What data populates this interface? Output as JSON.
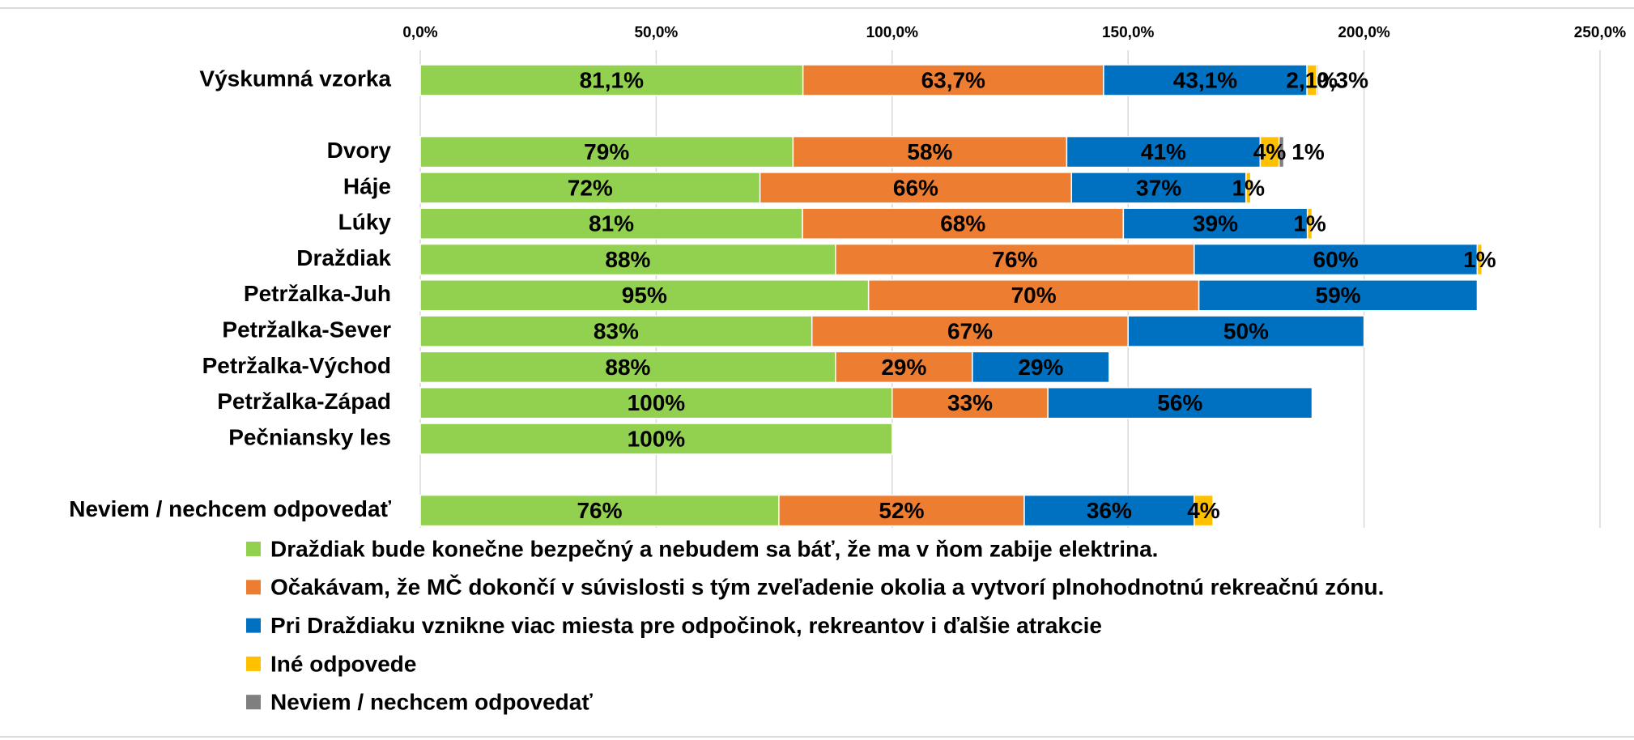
{
  "chart_data": {
    "type": "stacked-bar-horizontal",
    "categories": [
      "Výskumná vzorka",
      null,
      "Dvory",
      "Háje",
      "Lúky",
      "Draždiak",
      "Petržalka-Juh",
      "Petržalka-Sever",
      "Petržalka-Východ",
      "Petržalka-Západ",
      "Pečniansky les",
      null,
      "Neviem / nechcem odpovedať"
    ],
    "series": [
      {
        "name": "Draždiak bude konečne bezpečný a nebudem sa báť, že ma v ňom zabije elektrina.",
        "color": "#92d050",
        "values": [
          81.1,
          null,
          79,
          72,
          81,
          88,
          95,
          83,
          88,
          100,
          100,
          null,
          76
        ],
        "value_labels": [
          "81,1%",
          null,
          "79%",
          "72%",
          "81%",
          "88%",
          "95%",
          "83%",
          "88%",
          "100%",
          "100%",
          null,
          "76%"
        ]
      },
      {
        "name": "Očakávam, že MČ dokončí v súvislosti s tým zveľadenie okolia a vytvorí plnohodnotnú rekreačnú zónu.",
        "color": "#ed7d31",
        "values": [
          63.7,
          null,
          58,
          66,
          68,
          76,
          70,
          67,
          29,
          33,
          null,
          null,
          52
        ],
        "value_labels": [
          "63,7%",
          null,
          "58%",
          "66%",
          "68%",
          "76%",
          "70%",
          "67%",
          "29%",
          "33%",
          null,
          null,
          "52%"
        ]
      },
      {
        "name": "Pri Draždiaku vznikne viac miesta pre odpočinok, rekreantov i ďalšie atrakcie",
        "color": "#0070c0",
        "values": [
          43.1,
          null,
          41,
          37,
          39,
          60,
          59,
          50,
          29,
          56,
          null,
          null,
          36
        ],
        "value_labels": [
          "43,1%",
          null,
          "41%",
          "37%",
          "39%",
          "60%",
          "59%",
          "50%",
          "29%",
          "56%",
          null,
          null,
          "36%"
        ]
      },
      {
        "name": "Iné odpovede",
        "color": "#ffc000",
        "values": [
          2.1,
          null,
          4,
          1,
          1,
          1,
          null,
          null,
          null,
          null,
          null,
          null,
          4
        ],
        "value_labels": [
          "2,1%",
          null,
          "4%",
          "1%",
          "1%",
          "1%",
          null,
          null,
          null,
          null,
          null,
          null,
          "4%"
        ]
      },
      {
        "name": "Neviem / nechcem odpovedať",
        "color": "#7f7f7f",
        "values": [
          0.3,
          null,
          1,
          null,
          null,
          null,
          null,
          null,
          null,
          null,
          null,
          null,
          null
        ],
        "value_labels": [
          "0,3%",
          null,
          "1%",
          null,
          null,
          null,
          null,
          null,
          null,
          null,
          null,
          null,
          null
        ]
      }
    ],
    "xlim": [
      0,
      250
    ],
    "xticks": [
      {
        "value": 0,
        "label": "0,0%"
      },
      {
        "value": 50,
        "label": "50,0%"
      },
      {
        "value": 100,
        "label": "100,0%"
      },
      {
        "value": 150,
        "label": "150,0%"
      },
      {
        "value": 200,
        "label": "200,0%"
      },
      {
        "value": 250,
        "label": "250,0%"
      }
    ],
    "grid": true,
    "legend": "bottom"
  }
}
